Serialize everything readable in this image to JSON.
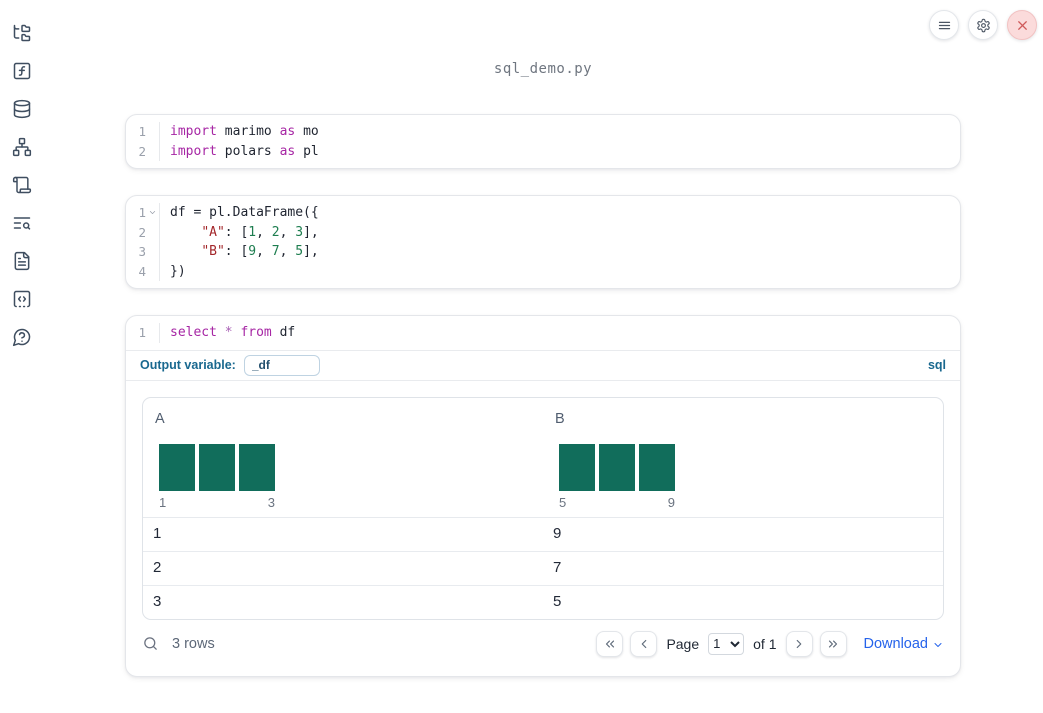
{
  "header": {
    "filename": "sql_demo.py"
  },
  "window_controls": [
    {
      "id": "menu",
      "icon": "menu-icon"
    },
    {
      "id": "settings",
      "icon": "gear-icon"
    },
    {
      "id": "shutdown",
      "icon": "close-icon"
    }
  ],
  "sidebar": {
    "items": [
      {
        "id": "file-explorer",
        "icon": "folder-tree-icon"
      },
      {
        "id": "variables",
        "icon": "function-icon"
      },
      {
        "id": "datasources",
        "icon": "database-icon"
      },
      {
        "id": "dependency-graph",
        "icon": "network-icon"
      },
      {
        "id": "logs",
        "icon": "scroll-icon"
      },
      {
        "id": "outline-search",
        "icon": "list-search-icon"
      },
      {
        "id": "documentation",
        "icon": "document-icon"
      },
      {
        "id": "snippets",
        "icon": "code-square-icon"
      },
      {
        "id": "help",
        "icon": "help-bubble-icon"
      }
    ]
  },
  "cells": [
    {
      "kind": "code",
      "lines": [
        {
          "num": "1",
          "fold": false,
          "tokens": [
            [
              "kw",
              "import"
            ],
            [
              "pl",
              " marimo "
            ],
            [
              "kw",
              "as"
            ],
            [
              "pl",
              " mo"
            ]
          ]
        },
        {
          "num": "2",
          "fold": false,
          "tokens": [
            [
              "kw",
              "import"
            ],
            [
              "pl",
              " polars "
            ],
            [
              "kw",
              "as"
            ],
            [
              "pl",
              " pl"
            ]
          ]
        }
      ]
    },
    {
      "kind": "code",
      "lines": [
        {
          "num": "1",
          "fold": true,
          "tokens": [
            [
              "pl",
              "df = pl.DataFrame({"
            ]
          ]
        },
        {
          "num": "2",
          "fold": false,
          "tokens": [
            [
              "pl",
              "    "
            ],
            [
              "str",
              "\"A\""
            ],
            [
              "pl",
              ": ["
            ],
            [
              "num",
              "1"
            ],
            [
              "pl",
              ", "
            ],
            [
              "num",
              "2"
            ],
            [
              "pl",
              ", "
            ],
            [
              "num",
              "3"
            ],
            [
              "pl",
              "],"
            ]
          ]
        },
        {
          "num": "3",
          "fold": false,
          "tokens": [
            [
              "pl",
              "    "
            ],
            [
              "str",
              "\"B\""
            ],
            [
              "pl",
              ": ["
            ],
            [
              "num",
              "9"
            ],
            [
              "pl",
              ", "
            ],
            [
              "num",
              "7"
            ],
            [
              "pl",
              ", "
            ],
            [
              "num",
              "5"
            ],
            [
              "pl",
              "],"
            ]
          ]
        },
        {
          "num": "4",
          "fold": false,
          "tokens": [
            [
              "pl",
              "})"
            ]
          ]
        }
      ]
    },
    {
      "kind": "sql",
      "lines": [
        {
          "num": "1",
          "fold": false,
          "tokens": [
            [
              "kw",
              "select"
            ],
            [
              "pl",
              " "
            ],
            [
              "op",
              "*"
            ],
            [
              "pl",
              " "
            ],
            [
              "kw",
              "from"
            ],
            [
              "pl",
              " df"
            ]
          ]
        }
      ],
      "output_variable_label": "Output variable:",
      "output_variable_value": "_df",
      "language_badge": "sql"
    }
  ],
  "table": {
    "columns": [
      {
        "name": "A",
        "hist_bars": [
          1,
          1,
          1
        ],
        "hist_min_label": "1",
        "hist_max_label": "3"
      },
      {
        "name": "B",
        "hist_bars": [
          1,
          1,
          1
        ],
        "hist_min_label": "5",
        "hist_max_label": "9"
      }
    ],
    "rows": [
      [
        "1",
        "9"
      ],
      [
        "2",
        "7"
      ],
      [
        "3",
        "5"
      ]
    ],
    "footer": {
      "row_count": "3 rows",
      "page_label": "Page",
      "page_value": "1",
      "of_label": "of 1",
      "download_label": "Download"
    }
  },
  "colors": {
    "hist_bar": "#116d5b",
    "keyword_purple": "#a626a4",
    "string_red": "#a3262a",
    "number_green": "#1d7d4f",
    "accent_blue": "#19688f",
    "link_blue": "#2563eb",
    "close_red": "#cf5a5a"
  }
}
